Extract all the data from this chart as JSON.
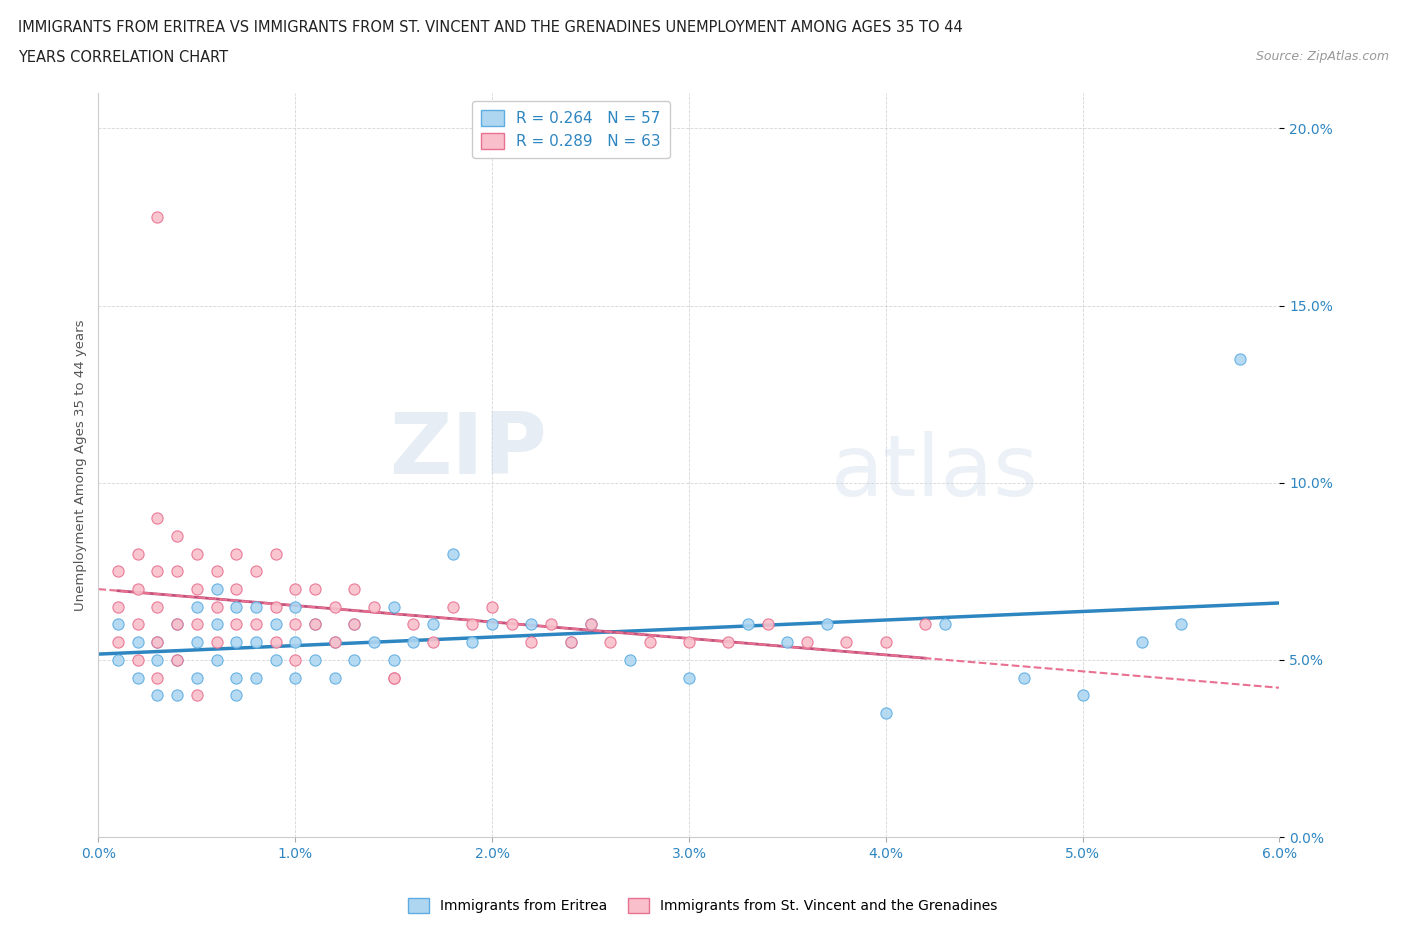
{
  "title_line1": "IMMIGRANTS FROM ERITREA VS IMMIGRANTS FROM ST. VINCENT AND THE GRENADINES UNEMPLOYMENT AMONG AGES 35 TO 44",
  "title_line2": "YEARS CORRELATION CHART",
  "source": "Source: ZipAtlas.com",
  "ylabel": "Unemployment Among Ages 35 to 44 years",
  "xlim": [
    0.0,
    0.06
  ],
  "ylim": [
    0.0,
    0.21
  ],
  "xticks": [
    0.0,
    0.01,
    0.02,
    0.03,
    0.04,
    0.05,
    0.06
  ],
  "xticklabels": [
    "0.0%",
    "1.0%",
    "2.0%",
    "3.0%",
    "4.0%",
    "5.0%",
    "6.0%"
  ],
  "yticks": [
    0.0,
    0.05,
    0.1,
    0.15,
    0.2
  ],
  "yticklabels": [
    "0.0%",
    "5.0%",
    "10.0%",
    "15.0%",
    "20.0%"
  ],
  "legend_r1": "R = 0.264",
  "legend_n1": "N = 57",
  "legend_r2": "R = 0.289",
  "legend_n2": "N = 63",
  "color_eritrea_fill": "#AED6F1",
  "color_eritrea_edge": "#5DADE2",
  "color_stvincent_fill": "#F9C0CB",
  "color_stvincent_edge": "#E87090",
  "color_trendline_eritrea": "#2E86C1",
  "color_trendline_stvincent": "#C0507A",
  "color_trendline_dashed": "#E87090",
  "watermark_zip": "ZIP",
  "watermark_atlas": "atlas",
  "eritrea_x": [
    0.001,
    0.001,
    0.002,
    0.002,
    0.003,
    0.003,
    0.003,
    0.004,
    0.004,
    0.004,
    0.005,
    0.005,
    0.005,
    0.006,
    0.006,
    0.006,
    0.007,
    0.007,
    0.007,
    0.007,
    0.008,
    0.008,
    0.008,
    0.009,
    0.009,
    0.01,
    0.01,
    0.01,
    0.011,
    0.011,
    0.012,
    0.012,
    0.013,
    0.013,
    0.014,
    0.015,
    0.015,
    0.016,
    0.017,
    0.018,
    0.019,
    0.02,
    0.022,
    0.024,
    0.025,
    0.027,
    0.03,
    0.033,
    0.035,
    0.037,
    0.04,
    0.043,
    0.047,
    0.05,
    0.053,
    0.055,
    0.058
  ],
  "eritrea_y": [
    0.06,
    0.05,
    0.055,
    0.045,
    0.055,
    0.05,
    0.04,
    0.06,
    0.05,
    0.04,
    0.065,
    0.055,
    0.045,
    0.07,
    0.06,
    0.05,
    0.065,
    0.055,
    0.045,
    0.04,
    0.065,
    0.055,
    0.045,
    0.06,
    0.05,
    0.065,
    0.055,
    0.045,
    0.06,
    0.05,
    0.055,
    0.045,
    0.06,
    0.05,
    0.055,
    0.065,
    0.05,
    0.055,
    0.06,
    0.08,
    0.055,
    0.06,
    0.06,
    0.055,
    0.06,
    0.05,
    0.045,
    0.06,
    0.055,
    0.06,
    0.035,
    0.06,
    0.045,
    0.04,
    0.055,
    0.06,
    0.135
  ],
  "stvincent_x": [
    0.001,
    0.001,
    0.001,
    0.002,
    0.002,
    0.002,
    0.002,
    0.003,
    0.003,
    0.003,
    0.003,
    0.003,
    0.004,
    0.004,
    0.004,
    0.004,
    0.005,
    0.005,
    0.005,
    0.006,
    0.006,
    0.006,
    0.007,
    0.007,
    0.007,
    0.008,
    0.008,
    0.009,
    0.009,
    0.009,
    0.01,
    0.01,
    0.01,
    0.011,
    0.011,
    0.012,
    0.012,
    0.013,
    0.013,
    0.014,
    0.015,
    0.016,
    0.017,
    0.018,
    0.019,
    0.02,
    0.021,
    0.022,
    0.023,
    0.024,
    0.025,
    0.026,
    0.028,
    0.03,
    0.032,
    0.034,
    0.036,
    0.038,
    0.04,
    0.042,
    0.003,
    0.005,
    0.015
  ],
  "stvincent_y": [
    0.065,
    0.075,
    0.055,
    0.07,
    0.08,
    0.06,
    0.05,
    0.09,
    0.075,
    0.065,
    0.055,
    0.045,
    0.085,
    0.075,
    0.06,
    0.05,
    0.08,
    0.07,
    0.06,
    0.075,
    0.065,
    0.055,
    0.08,
    0.07,
    0.06,
    0.075,
    0.06,
    0.08,
    0.065,
    0.055,
    0.07,
    0.06,
    0.05,
    0.07,
    0.06,
    0.065,
    0.055,
    0.07,
    0.06,
    0.065,
    0.045,
    0.06,
    0.055,
    0.065,
    0.06,
    0.065,
    0.06,
    0.055,
    0.06,
    0.055,
    0.06,
    0.055,
    0.055,
    0.055,
    0.055,
    0.06,
    0.055,
    0.055,
    0.055,
    0.06,
    0.175,
    0.04,
    0.045
  ]
}
